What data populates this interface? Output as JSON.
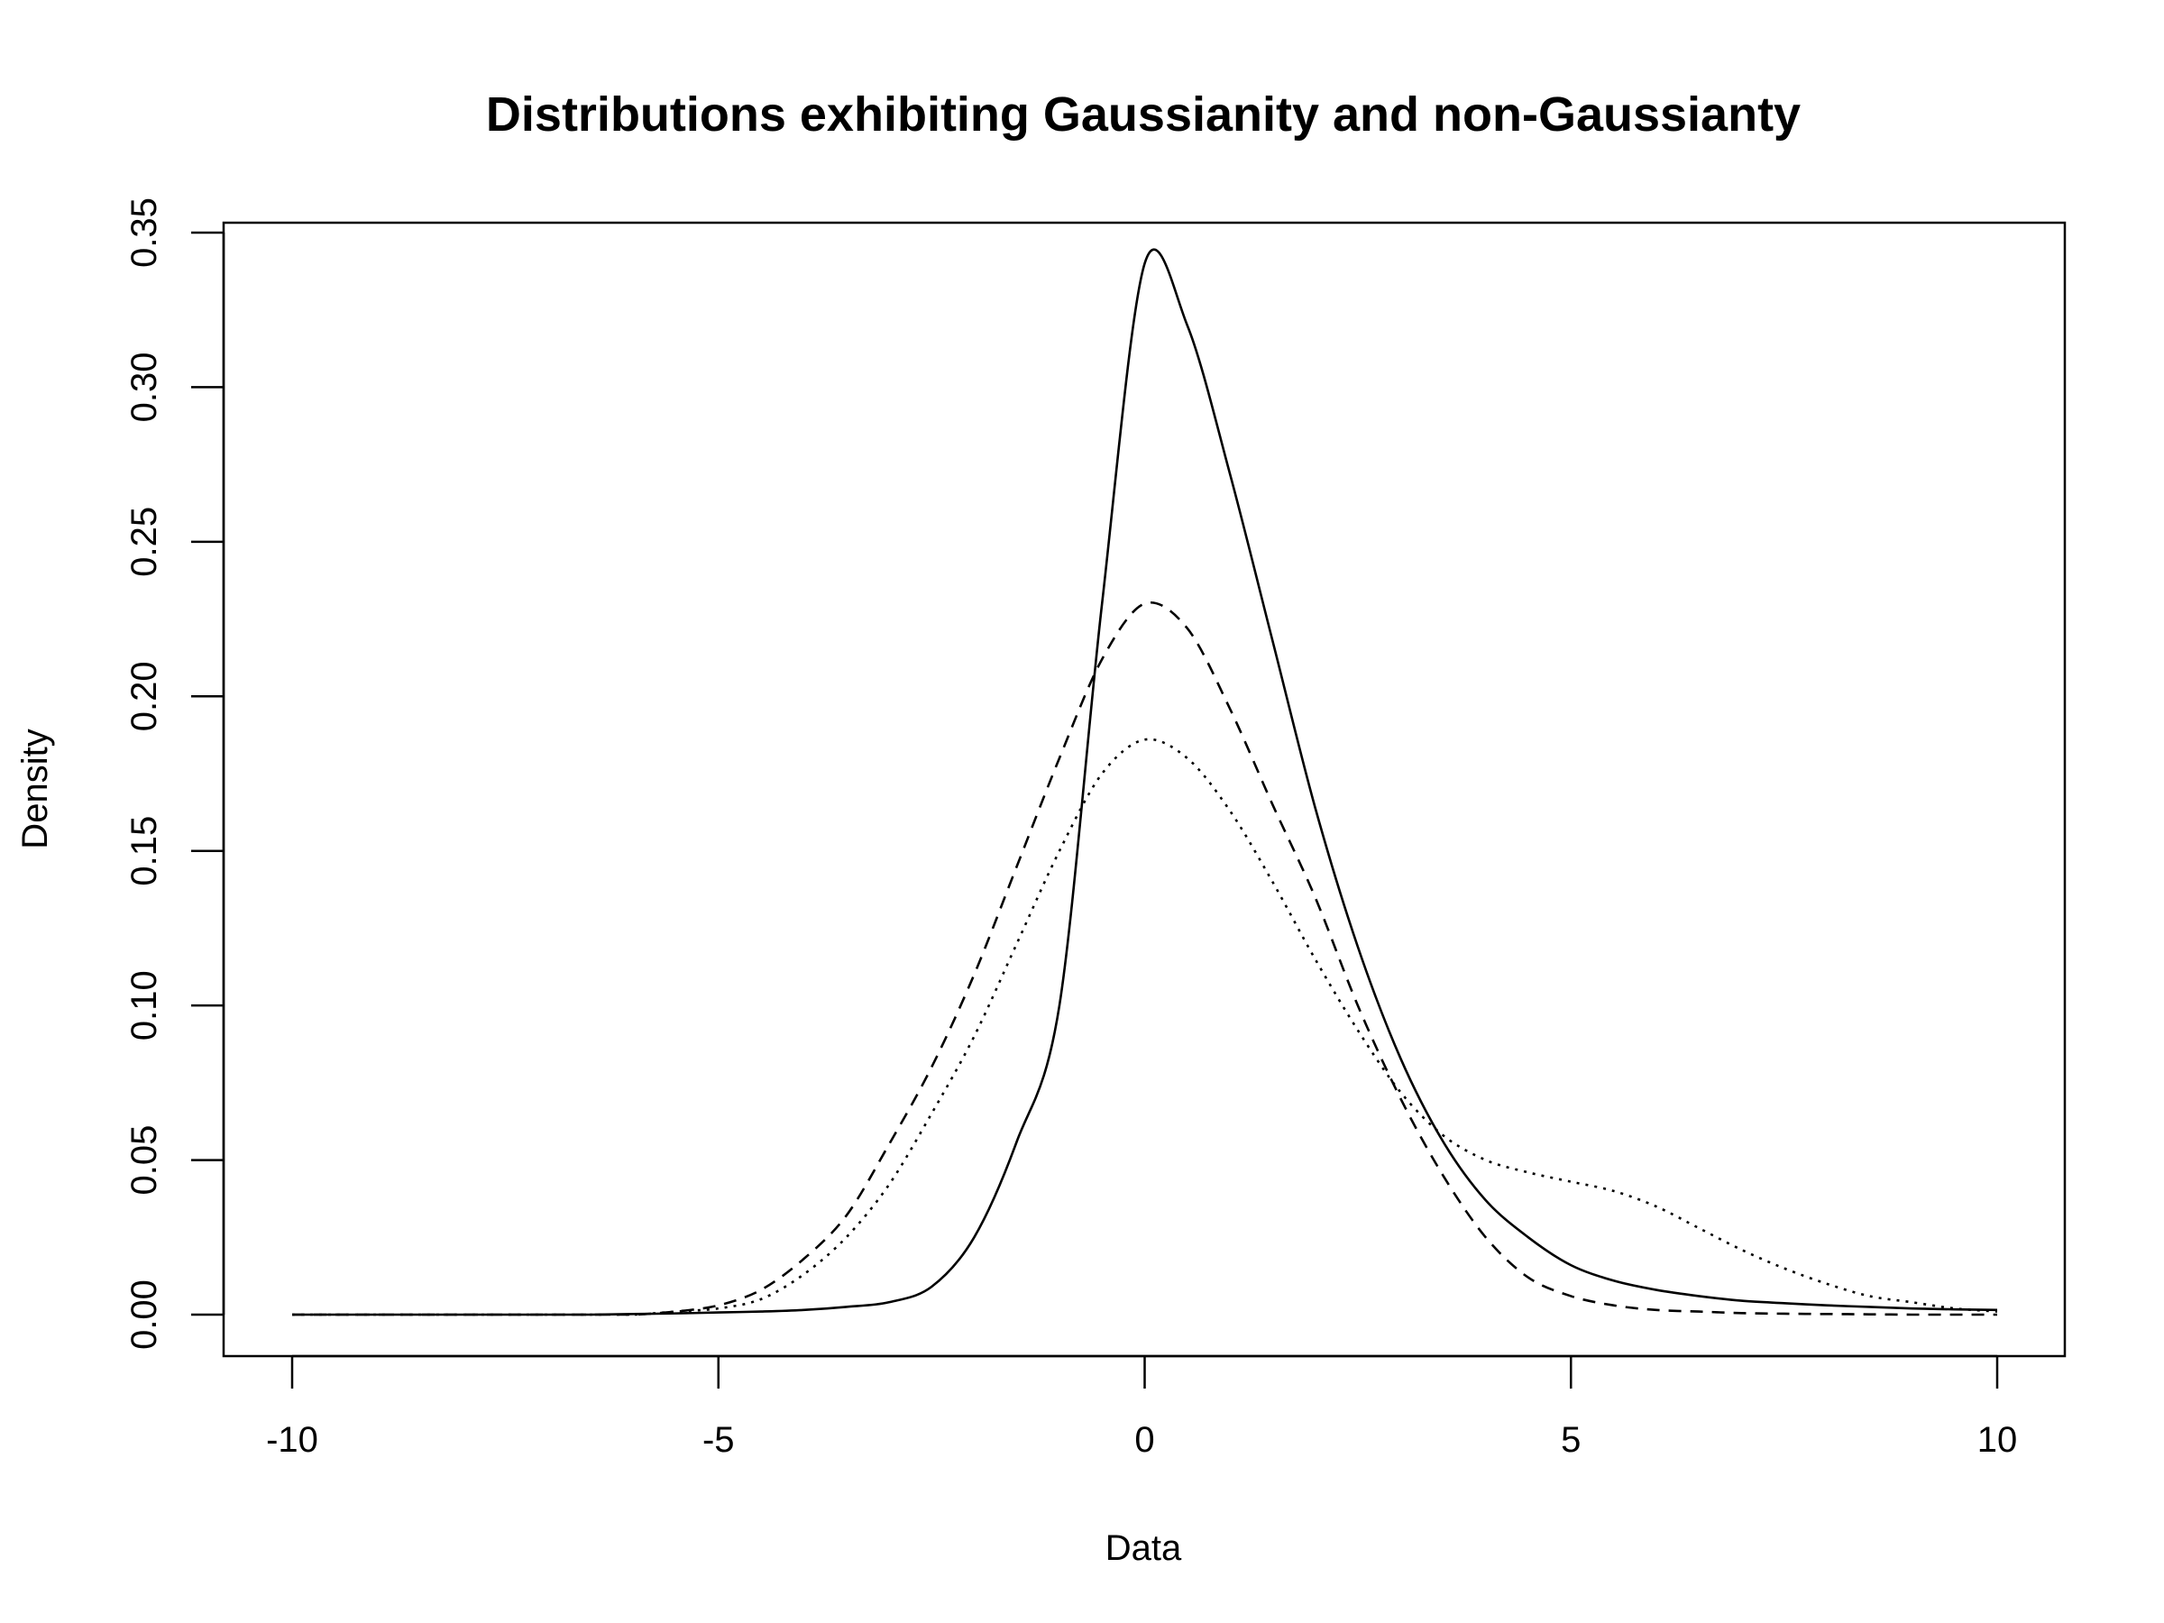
{
  "chart_data": {
    "type": "line",
    "title": "Distributions exhibiting Gaussianity and non-Gaussianty",
    "xlabel": "Data",
    "ylabel": "Density",
    "xlim": [
      -10,
      10
    ],
    "ylim": [
      0,
      0.35
    ],
    "grid": false,
    "legend": "none",
    "xticks": [
      "-10",
      "-5",
      "0",
      "5",
      "10"
    ],
    "yticks": [
      "0.00",
      "0.05",
      "0.10",
      "0.15",
      "0.20",
      "0.25",
      "0.30",
      "0.35"
    ],
    "x": [
      -10,
      -9.5,
      -9,
      -8.5,
      -8,
      -7.5,
      -7,
      -6.5,
      -6,
      -5.5,
      -5,
      -4.5,
      -4,
      -3.5,
      -3,
      -2.5,
      -2,
      -1.5,
      -1,
      -0.5,
      0,
      0.5,
      1,
      1.5,
      2,
      2.5,
      3,
      3.5,
      4,
      4.5,
      5,
      5.5,
      6,
      6.5,
      7,
      7.5,
      8,
      8.5,
      9,
      9.5,
      10
    ],
    "series": [
      {
        "style": "solid",
        "color": "#000000",
        "values": [
          0,
          0,
          0,
          0,
          0,
          0,
          0,
          0,
          0.0002,
          0.0004,
          0.0007,
          0.001,
          0.0015,
          0.0025,
          0.004,
          0.009,
          0.025,
          0.056,
          0.1,
          0.23,
          0.34,
          0.32,
          0.272,
          0.218,
          0.164,
          0.119,
          0.083,
          0.056,
          0.037,
          0.025,
          0.016,
          0.011,
          0.008,
          0.006,
          0.0045,
          0.0037,
          0.003,
          0.0025,
          0.002,
          0.0017,
          0.0015
        ]
      },
      {
        "style": "dashed",
        "color": "#000000",
        "values": [
          0,
          0,
          0,
          0,
          0,
          0,
          0,
          0,
          0,
          0.001,
          0.003,
          0.008,
          0.018,
          0.032,
          0.055,
          0.08,
          0.11,
          0.145,
          0.18,
          0.212,
          0.23,
          0.222,
          0.196,
          0.165,
          0.135,
          0.1,
          0.07,
          0.045,
          0.025,
          0.012,
          0.006,
          0.003,
          0.0015,
          0.001,
          0.0005,
          0.0003,
          0.0002,
          0.0001,
          0,
          0,
          0
        ]
      },
      {
        "style": "dotted",
        "color": "#000000",
        "values": [
          0,
          0,
          0,
          0,
          0,
          0,
          0,
          0,
          0,
          0.001,
          0.002,
          0.005,
          0.013,
          0.025,
          0.042,
          0.065,
          0.09,
          0.12,
          0.15,
          0.175,
          0.186,
          0.18,
          0.163,
          0.14,
          0.115,
          0.092,
          0.072,
          0.058,
          0.05,
          0.046,
          0.043,
          0.04,
          0.035,
          0.028,
          0.021,
          0.015,
          0.01,
          0.006,
          0.004,
          0.002,
          0.001
        ]
      }
    ]
  }
}
